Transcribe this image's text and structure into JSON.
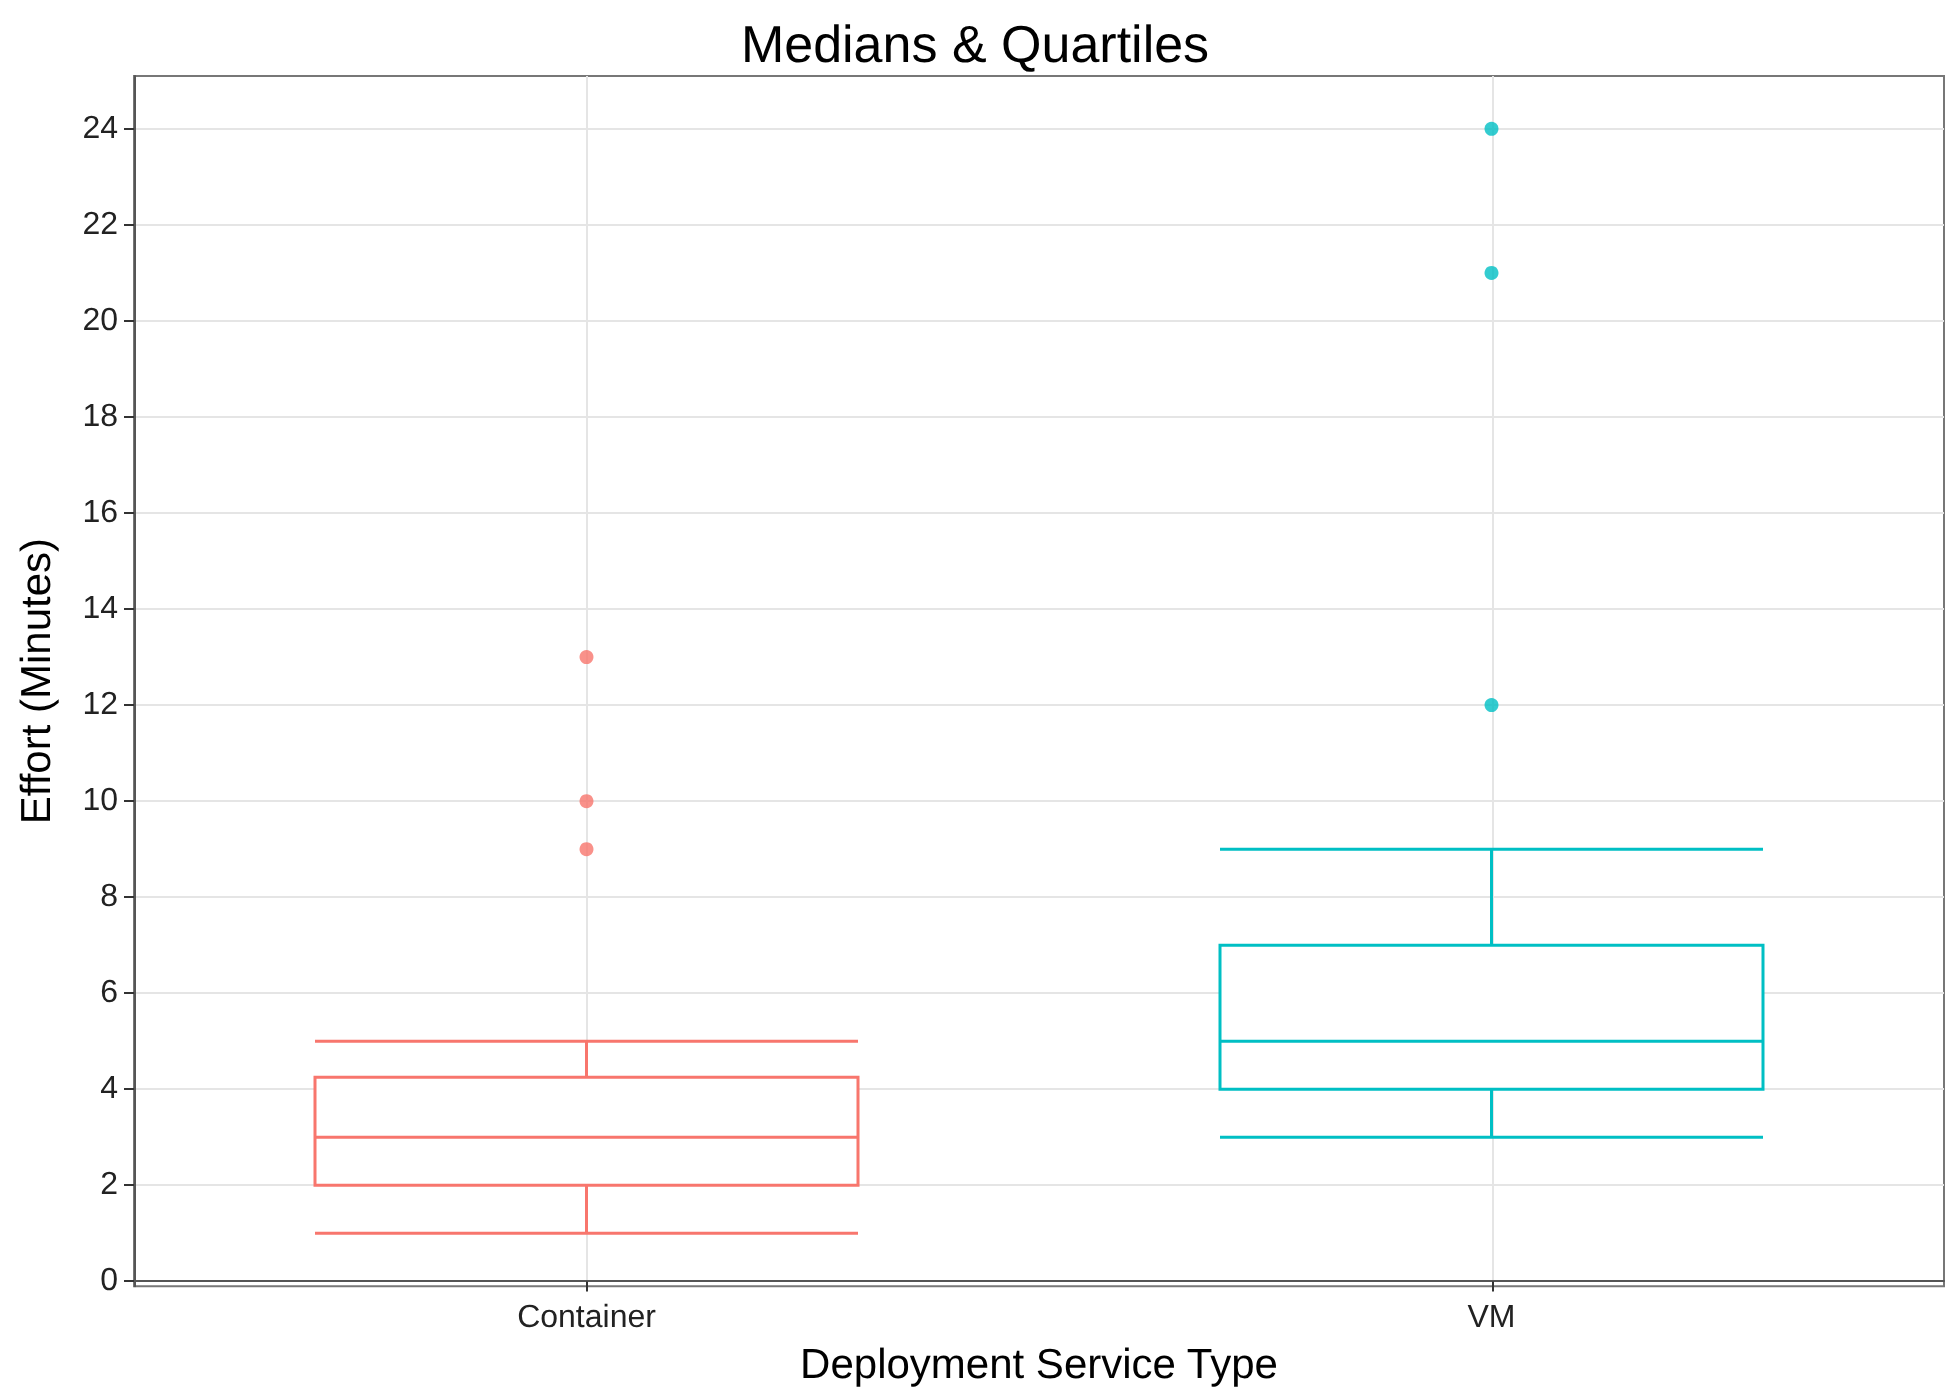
{
  "chart_data": {
    "type": "box",
    "title": "Medians & Quartiles",
    "xlabel": "Deployment Service Type",
    "ylabel": "Effort (Minutes)",
    "categories": [
      "Container",
      "VM"
    ],
    "colors": [
      "#f8766d",
      "#00bfc4"
    ],
    "boxes": [
      {
        "low": 1,
        "q1": 2,
        "median": 3,
        "q3": 4.25,
        "high": 5,
        "outliers": [
          9,
          10,
          13
        ]
      },
      {
        "low": 3,
        "q1": 4,
        "median": 5,
        "q3": 7,
        "high": 9,
        "outliers": [
          12,
          21,
          24
        ]
      }
    ],
    "ylim": [
      -0.1,
      25.1
    ],
    "yticks": [
      0,
      2,
      4,
      6,
      8,
      10,
      12,
      14,
      16,
      18,
      20,
      22,
      24
    ],
    "grid": true,
    "marker": "circle"
  }
}
